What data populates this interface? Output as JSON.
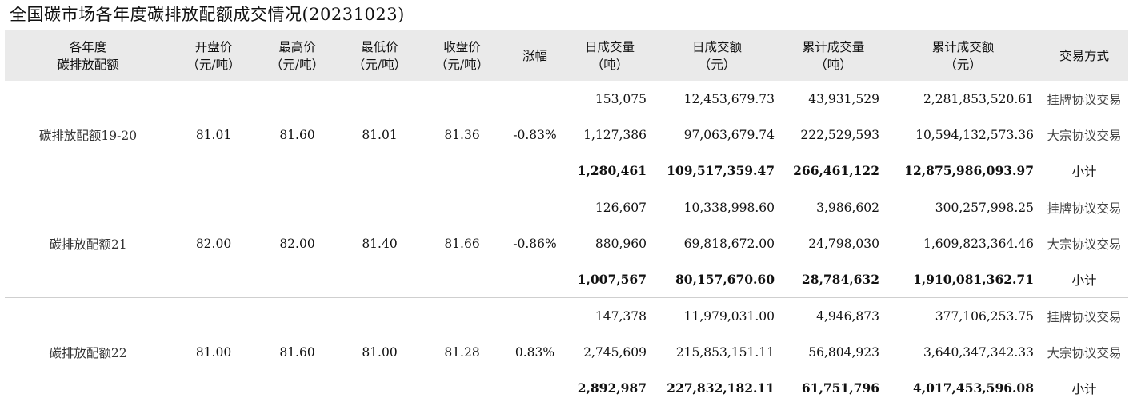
{
  "title": "全国碳市场各年度碳排放配额成交情况(20231023)",
  "headers": [
    {
      "line1": "各年度",
      "line2": "碳排放配额"
    },
    {
      "line1": "开盘价",
      "line2": "（元/吨）"
    },
    {
      "line1": "最高价",
      "line2": "（元/吨）"
    },
    {
      "line1": "最低价",
      "line2": "（元/吨）"
    },
    {
      "line1": "收盘价",
      "line2": "（元/吨）"
    },
    {
      "line1": "涨幅",
      "line2": ""
    },
    {
      "line1": "日成交量",
      "line2": "（吨）"
    },
    {
      "line1": "日成交额",
      "line2": "（元）"
    },
    {
      "line1": "累计成交量",
      "line2": "（吨）"
    },
    {
      "line1": "累计成交额",
      "line2": "（元）"
    },
    {
      "line1": "交易方式",
      "line2": ""
    }
  ],
  "groups": [
    {
      "name": "碳排放配额19-20",
      "open": "81.01",
      "high": "81.60",
      "low": "81.01",
      "close": "81.36",
      "change": "-0.83%",
      "rows": [
        {
          "daily_volume": "153,075",
          "daily_amount": "12,453,679.73",
          "cum_volume": "43,931,529",
          "cum_amount": "2,281,853,520.61",
          "mode": "挂牌协议交易"
        },
        {
          "daily_volume": "1,127,386",
          "daily_amount": "97,063,679.74",
          "cum_volume": "222,529,593",
          "cum_amount": "10,594,132,573.36",
          "mode": "大宗协议交易"
        },
        {
          "daily_volume": "1,280,461",
          "daily_amount": "109,517,359.47",
          "cum_volume": "266,461,122",
          "cum_amount": "12,875,986,093.97",
          "mode": "小计"
        }
      ]
    },
    {
      "name": "碳排放配额21",
      "open": "82.00",
      "high": "82.00",
      "low": "81.40",
      "close": "81.66",
      "change": "-0.86%",
      "rows": [
        {
          "daily_volume": "126,607",
          "daily_amount": "10,338,998.60",
          "cum_volume": "3,986,602",
          "cum_amount": "300,257,998.25",
          "mode": "挂牌协议交易"
        },
        {
          "daily_volume": "880,960",
          "daily_amount": "69,818,672.00",
          "cum_volume": "24,798,030",
          "cum_amount": "1,609,823,364.46",
          "mode": "大宗协议交易"
        },
        {
          "daily_volume": "1,007,567",
          "daily_amount": "80,157,670.60",
          "cum_volume": "28,784,632",
          "cum_amount": "1,910,081,362.71",
          "mode": "小计"
        }
      ]
    },
    {
      "name": "碳排放配额22",
      "open": "81.00",
      "high": "81.60",
      "low": "81.00",
      "close": "81.28",
      "change": "0.83%",
      "rows": [
        {
          "daily_volume": "147,378",
          "daily_amount": "11,979,031.00",
          "cum_volume": "4,946,873",
          "cum_amount": "377,106,253.75",
          "mode": "挂牌协议交易"
        },
        {
          "daily_volume": "2,745,609",
          "daily_amount": "215,853,151.11",
          "cum_volume": "56,804,923",
          "cum_amount": "3,640,347,342.33",
          "mode": "大宗协议交易"
        },
        {
          "daily_volume": "2,892,987",
          "daily_amount": "227,832,182.11",
          "cum_volume": "61,751,796",
          "cum_amount": "4,017,453,596.08",
          "mode": "小计"
        }
      ]
    }
  ]
}
